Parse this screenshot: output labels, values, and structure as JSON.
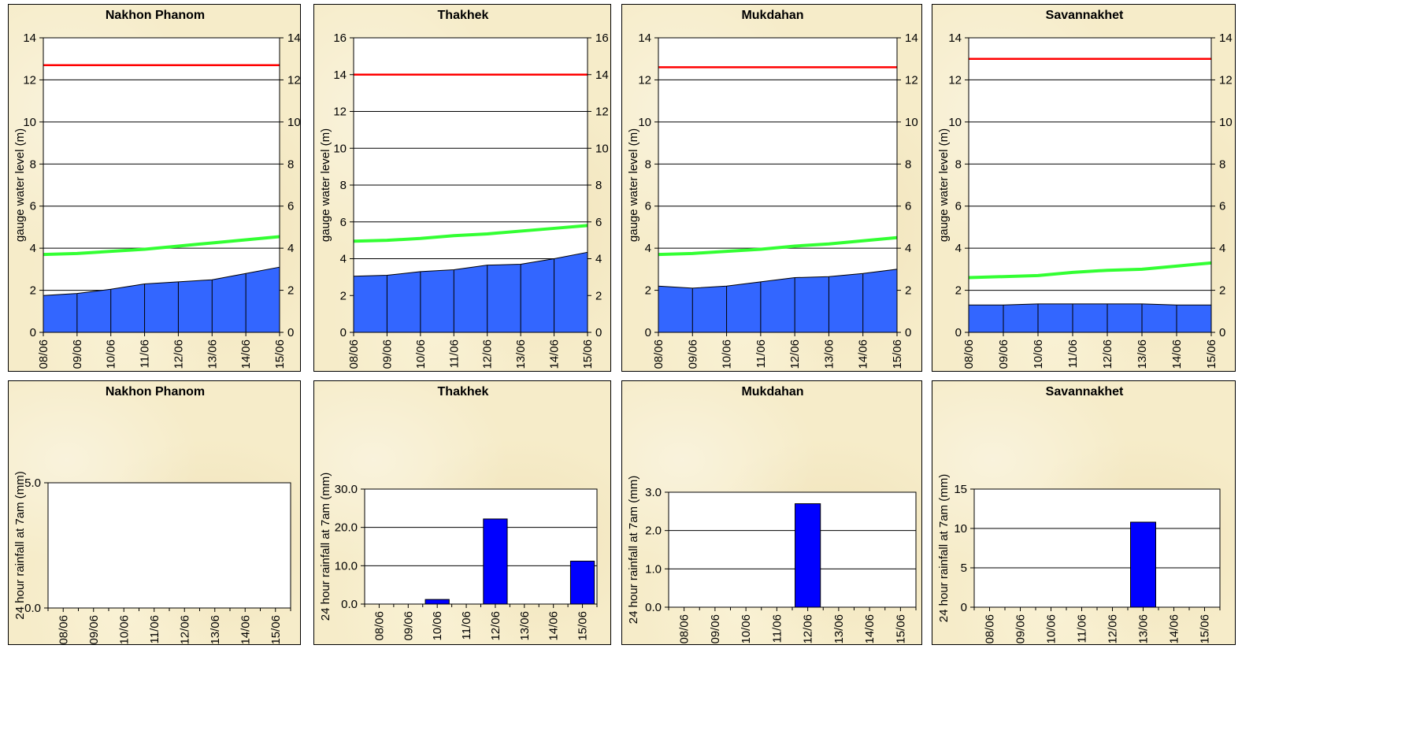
{
  "x_labels": [
    "08/06",
    "09/06",
    "10/06",
    "11/06",
    "12/06",
    "13/06",
    "14/06",
    "15/06"
  ],
  "colors": {
    "area_fill": "#3366ff",
    "flood_line": "#ff0000",
    "mean_line": "#33ff33",
    "bar_fill": "#0000ff"
  },
  "chart_data": [
    {
      "type": "area",
      "title": "Nakhon Phanom",
      "ylabel": "gauge water level (m)",
      "ylim": [
        0,
        14
      ],
      "yticks": [
        "0",
        "2",
        "4",
        "6",
        "8",
        "10",
        "12",
        "14"
      ],
      "right_yticks": [
        "0",
        "2",
        "4",
        "6",
        "8",
        "10",
        "12",
        "14"
      ],
      "x": [
        "08/06",
        "09/06",
        "10/06",
        "11/06",
        "12/06",
        "13/06",
        "14/06",
        "15/06"
      ],
      "series": [
        {
          "role": "water-level",
          "values": [
            1.75,
            1.85,
            2.05,
            2.3,
            2.4,
            2.5,
            2.8,
            3.1
          ]
        },
        {
          "role": "flood-level",
          "values": [
            12.7,
            12.7,
            12.7,
            12.7,
            12.7,
            12.7,
            12.7,
            12.7
          ]
        },
        {
          "role": "average-level",
          "values": [
            3.7,
            3.75,
            3.85,
            3.95,
            4.1,
            4.25,
            4.4,
            4.55
          ]
        }
      ]
    },
    {
      "type": "area",
      "title": "Thakhek",
      "ylabel": "gauge water level (m)",
      "ylim": [
        0,
        16
      ],
      "yticks": [
        "0",
        "2",
        "4",
        "6",
        "8",
        "10",
        "12",
        "14",
        "16"
      ],
      "right_yticks": [
        "0",
        "2",
        "4",
        "6",
        "8",
        "10",
        "12",
        "14",
        "16"
      ],
      "x": [
        "08/06",
        "09/06",
        "10/06",
        "11/06",
        "12/06",
        "13/06",
        "14/06",
        "15/06"
      ],
      "series": [
        {
          "role": "water-level",
          "values": [
            3.05,
            3.1,
            3.3,
            3.4,
            3.65,
            3.7,
            4.0,
            4.35
          ]
        },
        {
          "role": "flood-level",
          "values": [
            14.0,
            14.0,
            14.0,
            14.0,
            14.0,
            14.0,
            14.0,
            14.0
          ]
        },
        {
          "role": "average-level",
          "values": [
            4.95,
            5.0,
            5.1,
            5.25,
            5.35,
            5.5,
            5.65,
            5.8
          ]
        }
      ]
    },
    {
      "type": "area",
      "title": "Mukdahan",
      "ylabel": "gauge water level (m)",
      "ylim": [
        0,
        14
      ],
      "yticks": [
        "0",
        "2",
        "4",
        "6",
        "8",
        "10",
        "12",
        "14"
      ],
      "right_yticks": [
        "0",
        "2",
        "4",
        "6",
        "8",
        "10",
        "12",
        "14"
      ],
      "x": [
        "08/06",
        "09/06",
        "10/06",
        "11/06",
        "12/06",
        "13/06",
        "14/06",
        "15/06"
      ],
      "series": [
        {
          "role": "water-level",
          "values": [
            2.2,
            2.1,
            2.2,
            2.4,
            2.6,
            2.65,
            2.8,
            3.0
          ]
        },
        {
          "role": "flood-level",
          "values": [
            12.6,
            12.6,
            12.6,
            12.6,
            12.6,
            12.6,
            12.6,
            12.6
          ]
        },
        {
          "role": "average-level",
          "values": [
            3.7,
            3.75,
            3.85,
            3.95,
            4.1,
            4.2,
            4.35,
            4.5
          ]
        }
      ]
    },
    {
      "type": "area",
      "title": "Savannakhet",
      "ylabel": "gauge water level (m)",
      "ylim": [
        0,
        14
      ],
      "yticks": [
        "0",
        "2",
        "4",
        "6",
        "8",
        "10",
        "12",
        "14"
      ],
      "right_yticks": [
        "0",
        "2",
        "4",
        "6",
        "8",
        "10",
        "12",
        "14"
      ],
      "x": [
        "08/06",
        "09/06",
        "10/06",
        "11/06",
        "12/06",
        "13/06",
        "14/06",
        "15/06"
      ],
      "series": [
        {
          "role": "water-level",
          "values": [
            1.3,
            1.3,
            1.35,
            1.35,
            1.35,
            1.35,
            1.3,
            1.3
          ]
        },
        {
          "role": "flood-level",
          "values": [
            13.0,
            13.0,
            13.0,
            13.0,
            13.0,
            13.0,
            13.0,
            13.0
          ]
        },
        {
          "role": "average-level",
          "values": [
            2.6,
            2.65,
            2.7,
            2.85,
            2.95,
            3.0,
            3.15,
            3.3
          ]
        }
      ]
    },
    {
      "type": "bar",
      "title": "Nakhon Phanom",
      "ylabel": "24 hour rainfall at 7am (mm)",
      "ylim": [
        0,
        5
      ],
      "yticks": [
        "0.0",
        "5.0"
      ],
      "categories": [
        "08/06",
        "09/06",
        "10/06",
        "11/06",
        "12/06",
        "13/06",
        "14/06",
        "15/06"
      ],
      "values": [
        0,
        0,
        0,
        0,
        0,
        0,
        0,
        0
      ]
    },
    {
      "type": "bar",
      "title": "Thakhek",
      "ylabel": "24 hour rainfall at 7am (mm)",
      "ylim": [
        0,
        30
      ],
      "yticks": [
        "0.0",
        "10.0",
        "20.0",
        "30.0"
      ],
      "categories": [
        "08/06",
        "09/06",
        "10/06",
        "11/06",
        "12/06",
        "13/06",
        "14/06",
        "15/06"
      ],
      "values": [
        0,
        0,
        1.2,
        0,
        22.2,
        0,
        0,
        11.2
      ]
    },
    {
      "type": "bar",
      "title": "Mukdahan",
      "ylabel": "24 hour rainfall at 7am (mm)",
      "ylim": [
        0,
        3
      ],
      "yticks": [
        "0.0",
        "1.0",
        "2.0",
        "3.0"
      ],
      "categories": [
        "08/06",
        "09/06",
        "10/06",
        "11/06",
        "12/06",
        "13/06",
        "14/06",
        "15/06"
      ],
      "values": [
        0,
        0,
        0,
        0,
        2.7,
        0,
        0,
        0
      ]
    },
    {
      "type": "bar",
      "title": "Savannakhet",
      "ylabel": "24 hour rainfall at 7am (mm)",
      "ylim": [
        0,
        15
      ],
      "yticks": [
        "0",
        "5",
        "10",
        "15"
      ],
      "categories": [
        "08/06",
        "09/06",
        "10/06",
        "11/06",
        "12/06",
        "13/06",
        "14/06",
        "15/06"
      ],
      "values": [
        0,
        0,
        0,
        0,
        0,
        10.8,
        0,
        0
      ]
    }
  ]
}
